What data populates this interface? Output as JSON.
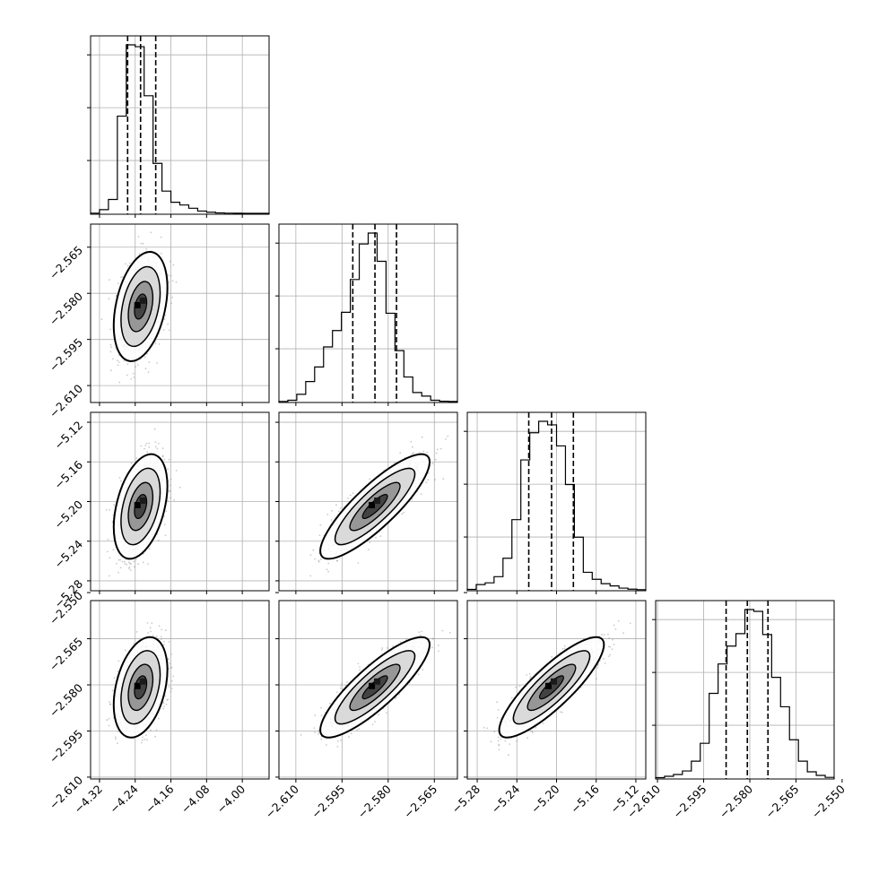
{
  "figure": {
    "type": "corner-plot",
    "grid": true,
    "background": "#ffffff",
    "foreground": "#000000"
  },
  "chart_data": [
    {
      "type": "histogram",
      "title": "",
      "xlabel": "",
      "ylabel": "",
      "xlim": [
        -4.34,
        -3.94
      ],
      "bins": [
        -4.34,
        -4.32,
        -4.3,
        -4.28,
        -4.26,
        -4.24,
        -4.22,
        -4.2,
        -4.18,
        -4.16,
        -4.14,
        -4.12,
        -4.1,
        -4.08,
        -4.06,
        -4.04,
        -4.02,
        -4.0,
        -3.98,
        -3.96,
        -3.94
      ],
      "counts": [
        2,
        40,
        150,
        1050,
        1820,
        1800,
        1270,
        540,
        240,
        120,
        90,
        55,
        25,
        12,
        5,
        2,
        1,
        0,
        0,
        0
      ],
      "quantiles": [
        -4.257,
        -4.228,
        -4.194
      ],
      "x_ticks": [
        -4.32,
        -4.24,
        -4.16,
        -4.08,
        -4.0
      ]
    },
    {
      "type": "histogram",
      "title": "",
      "xlabel": "",
      "ylabel": "",
      "xlim": [
        -2.6155,
        -2.5575
      ],
      "bins": [
        -2.6155,
        -2.6126,
        -2.6097,
        -2.6068,
        -2.6039,
        -2.601,
        -2.5981,
        -2.5952,
        -2.5923,
        -2.5894,
        -2.5865,
        -2.5836,
        -2.5807,
        -2.5778,
        -2.5749,
        -2.572,
        -2.5691,
        -2.5662,
        -2.5633,
        -2.5604,
        -2.5575
      ],
      "counts": [
        2,
        15,
        80,
        220,
        380,
        600,
        780,
        980,
        1340,
        1730,
        1850,
        1540,
        970,
        560,
        270,
        100,
        60,
        15,
        4,
        1
      ],
      "quantiles": [
        -2.5915,
        -2.5843,
        -2.5773
      ],
      "x_ticks": [
        -2.61,
        -2.595,
        -2.58,
        -2.565
      ]
    },
    {
      "type": "histogram",
      "title": "",
      "xlabel": "",
      "ylabel": "",
      "xlim": [
        -5.29,
        -5.11
      ],
      "bins": [
        -5.29,
        -5.281,
        -5.272,
        -5.263,
        -5.254,
        -5.245,
        -5.236,
        -5.227,
        -5.218,
        -5.209,
        -5.2,
        -5.191,
        -5.182,
        -5.173,
        -5.164,
        -5.155,
        -5.146,
        -5.137,
        -5.128,
        -5.119,
        -5.11
      ],
      "counts": [
        5,
        60,
        80,
        150,
        360,
        800,
        1480,
        1790,
        1920,
        1880,
        1640,
        1200,
        600,
        200,
        120,
        70,
        45,
        20,
        8,
        2
      ],
      "quantiles": [
        -5.228,
        -5.205,
        -5.183
      ],
      "x_ticks": [
        -5.28,
        -5.24,
        -5.2,
        -5.16,
        -5.12
      ]
    },
    {
      "type": "histogram",
      "title": "",
      "xlabel": "",
      "ylabel": "",
      "xlim": [
        -2.6106,
        -2.5526
      ],
      "bins": [
        -2.6106,
        -2.6077,
        -2.6048,
        -2.6019,
        -2.599,
        -2.5961,
        -2.5932,
        -2.5903,
        -2.5874,
        -2.5845,
        -2.5816,
        -2.5787,
        -2.5758,
        -2.5729,
        -2.57,
        -2.5671,
        -2.5642,
        -2.5613,
        -2.5584,
        -2.5555,
        -2.5526
      ],
      "counts": [
        5,
        20,
        40,
        80,
        190,
        390,
        950,
        1280,
        1480,
        1620,
        1890,
        1870,
        1610,
        1130,
        800,
        430,
        190,
        70,
        30,
        8
      ],
      "quantiles": [
        -2.5877,
        -2.5808,
        -2.5741
      ],
      "x_ticks": [
        -2.61,
        -2.595,
        -2.58,
        -2.565,
        -2.55
      ]
    },
    {
      "type": "scatter-density",
      "title": "",
      "xlabel": "",
      "ylabel": "",
      "xlim": [
        -4.34,
        -3.94
      ],
      "ylim": [
        -2.6155,
        -2.5575
      ],
      "center": [
        -4.228,
        -2.5843
      ],
      "spread": [
        0.025,
        0.0074
      ],
      "correlation": 0.35,
      "x_ticks": [
        -4.32,
        -4.24,
        -4.16,
        -4.08,
        -4.0
      ],
      "y_ticks": [
        -2.565,
        -2.58,
        -2.595,
        -2.61
      ]
    },
    {
      "type": "scatter-density",
      "title": "",
      "xlabel": "",
      "ylabel": "",
      "xlim": [
        -4.34,
        -3.94
      ],
      "ylim": [
        -5.29,
        -5.11
      ],
      "center": [
        -4.228,
        -5.205
      ],
      "spread": [
        0.025,
        0.022
      ],
      "correlation": 0.4,
      "x_ticks": [
        -4.32,
        -4.24,
        -4.16,
        -4.08,
        -4.0
      ],
      "y_ticks": [
        -5.12,
        -5.16,
        -5.2,
        -5.24,
        -5.28
      ]
    },
    {
      "type": "scatter-density",
      "title": "",
      "xlabel": "",
      "ylabel": "",
      "xlim": [
        -2.6155,
        -2.5575
      ],
      "ylim": [
        -5.29,
        -5.11
      ],
      "center": [
        -2.5843,
        -5.205
      ],
      "spread": [
        0.0074,
        0.022
      ],
      "correlation": 0.85,
      "x_ticks": [
        -2.61,
        -2.595,
        -2.58,
        -2.565
      ],
      "y_ticks": [
        -5.12,
        -5.16,
        -5.2,
        -5.24,
        -5.28
      ]
    },
    {
      "type": "scatter-density",
      "title": "",
      "xlabel": "",
      "ylabel": "",
      "xlim": [
        -4.34,
        -3.94
      ],
      "ylim": [
        -2.6106,
        -2.5526
      ],
      "center": [
        -4.228,
        -2.5808
      ],
      "spread": [
        0.025,
        0.0068
      ],
      "correlation": 0.35,
      "x_ticks": [
        -4.32,
        -4.24,
        -4.16,
        -4.08,
        -4.0
      ],
      "y_ticks": [
        -2.55,
        -2.565,
        -2.58,
        -2.595,
        -2.61
      ]
    },
    {
      "type": "scatter-density",
      "title": "",
      "xlabel": "",
      "ylabel": "",
      "xlim": [
        -2.6155,
        -2.5575
      ],
      "ylim": [
        -2.6106,
        -2.5526
      ],
      "center": [
        -2.5843,
        -2.5808
      ],
      "spread": [
        0.0074,
        0.0068
      ],
      "correlation": 0.85,
      "x_ticks": [
        -2.61,
        -2.595,
        -2.58,
        -2.565
      ],
      "y_ticks": [
        -2.55,
        -2.565,
        -2.58,
        -2.595,
        -2.61
      ]
    },
    {
      "type": "scatter-density",
      "title": "",
      "xlabel": "",
      "ylabel": "",
      "xlim": [
        -5.29,
        -5.11
      ],
      "ylim": [
        -2.6106,
        -2.5526
      ],
      "center": [
        -5.205,
        -2.5808
      ],
      "spread": [
        0.022,
        0.0068
      ],
      "correlation": 0.85,
      "x_ticks": [
        -5.28,
        -5.24,
        -5.2,
        -5.16,
        -5.12
      ],
      "y_ticks": [
        -2.55,
        -2.565,
        -2.58,
        -2.595,
        -2.61
      ]
    }
  ],
  "tick_labels": {
    "p1_x": [
      "−4.32",
      "−4.24",
      "−4.16",
      "−4.08",
      "−4.00"
    ],
    "p2_x": [
      "−2.610",
      "−2.595",
      "−2.580",
      "−2.565"
    ],
    "p3_x": [
      "−5.28",
      "−5.24",
      "−5.20",
      "−5.16",
      "−5.12"
    ],
    "p4_x": [
      "−2.610",
      "−2.595",
      "−2.580",
      "−2.565",
      "−2.550"
    ],
    "p2_y": [
      "−2.565",
      "−2.580",
      "−2.595",
      "−2.610"
    ],
    "p3_y": [
      "−5.12",
      "−5.16",
      "−5.20",
      "−5.24",
      "−5.28"
    ],
    "p4_y": [
      "−2.550",
      "−2.565",
      "−2.580",
      "−2.595",
      "−2.610"
    ]
  }
}
